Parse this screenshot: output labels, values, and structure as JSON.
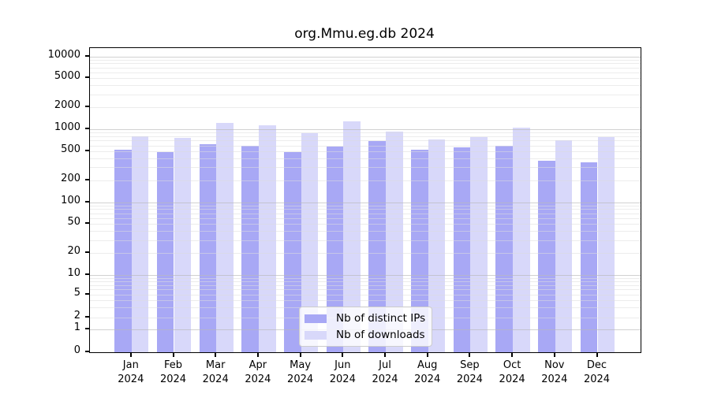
{
  "chart_data": {
    "type": "bar",
    "title": "org.Mmu.eg.db 2024",
    "categories": [
      "Jan",
      "Feb",
      "Mar",
      "Apr",
      "May",
      "Jun",
      "Jul",
      "Aug",
      "Sep",
      "Oct",
      "Nov",
      "Dec"
    ],
    "category_year": "2024",
    "series": [
      {
        "name": "Nb of distinct IPs",
        "color": "#a8a8f5",
        "values": [
          520,
          480,
          625,
          600,
          480,
          585,
          690,
          520,
          560,
          600,
          370,
          350
        ]
      },
      {
        "name": "Nb of downloads",
        "color": "#d8d8fa",
        "values": [
          805,
          760,
          1210,
          1140,
          890,
          1280,
          930,
          725,
          770,
          1040,
          705,
          770
        ]
      }
    ],
    "yscale": "symlog",
    "ylim": [
      0,
      13000
    ],
    "yticks": [
      0,
      1,
      2,
      5,
      10,
      20,
      50,
      100,
      200,
      500,
      1000,
      2000,
      5000,
      10000
    ],
    "grid": true,
    "legend_position": "bottom-center"
  }
}
